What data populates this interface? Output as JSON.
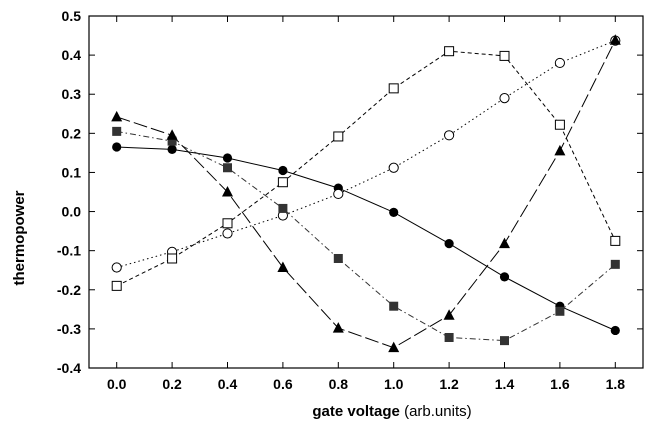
{
  "chart_data": {
    "type": "line",
    "xlabel": "gate voltage",
    "xlabel_unit": "(arb.units)",
    "ylabel": "thermopower",
    "xlim": [
      -0.1,
      1.9
    ],
    "ylim": [
      -0.4,
      0.5
    ],
    "x_ticks": [
      "0.0",
      "0.2",
      "0.4",
      "0.6",
      "0.8",
      "1.0",
      "1.2",
      "1.4",
      "1.6",
      "1.8"
    ],
    "y_ticks": [
      "0.5",
      "0.4",
      "0.3",
      "0.2",
      "0.1",
      "0.0",
      "-0.1",
      "-0.2",
      "-0.3",
      "-0.4"
    ],
    "grid": false,
    "x": [
      0.0,
      0.2,
      0.4,
      0.6,
      0.8,
      1.0,
      1.2,
      1.4,
      1.6,
      1.8
    ],
    "series": [
      {
        "marker": "filled-circle",
        "line_style": "solid",
        "color": "#000000",
        "values": [
          0.165,
          0.159,
          0.137,
          0.105,
          0.06,
          -0.002,
          -0.082,
          -0.167,
          -0.242,
          -0.304
        ]
      },
      {
        "marker": "open-circle",
        "line_style": "dotted",
        "color": "#000000",
        "values": [
          -0.143,
          -0.103,
          -0.056,
          -0.01,
          0.045,
          0.112,
          0.195,
          0.29,
          0.38,
          0.437
        ]
      },
      {
        "marker": "open-square",
        "line_style": "dashed",
        "color": "#000000",
        "values": [
          -0.19,
          -0.12,
          -0.03,
          0.075,
          0.192,
          0.315,
          0.41,
          0.398,
          0.222,
          -0.075
        ]
      },
      {
        "marker": "filled-square",
        "line_style": "dash-dot",
        "color": "#333333",
        "values": [
          0.205,
          0.18,
          0.112,
          0.008,
          -0.12,
          -0.242,
          -0.322,
          -0.33,
          -0.255,
          -0.135
        ]
      },
      {
        "marker": "filled-triangle",
        "line_style": "long-dash",
        "color": "#000000",
        "values": [
          0.242,
          0.195,
          0.05,
          -0.143,
          -0.298,
          -0.348,
          -0.265,
          -0.082,
          0.155,
          0.438
        ]
      }
    ]
  }
}
